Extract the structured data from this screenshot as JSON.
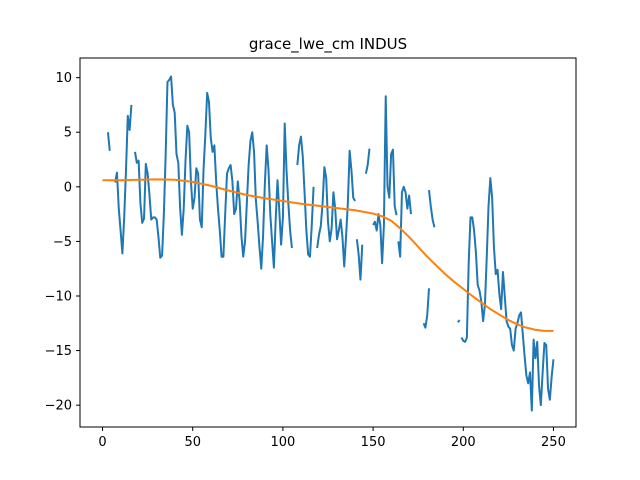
{
  "chart_data": {
    "type": "line",
    "title": "grace_lwe_cm INDUS",
    "xlabel": "",
    "ylabel": "",
    "xlim": [
      -12.5,
      262.5
    ],
    "ylim": [
      -22,
      11.8
    ],
    "x_ticks": [
      0,
      50,
      100,
      150,
      200,
      250
    ],
    "y_ticks": [
      -20,
      -15,
      -10,
      -5,
      0,
      5,
      10
    ],
    "grid": false,
    "legend": "none",
    "series": [
      {
        "color": "#1f77b4",
        "points": [
          [
            3,
            5.0
          ],
          [
            4,
            3.3
          ],
          null,
          [
            7,
            0.4
          ],
          [
            8,
            1.3
          ],
          [
            9,
            -2.0
          ],
          [
            10,
            -4.0
          ],
          [
            11,
            -6.1
          ],
          [
            12,
            -2.8
          ],
          [
            13,
            1.5
          ],
          [
            14,
            6.5
          ],
          [
            15,
            5.2
          ],
          [
            16,
            7.5
          ],
          null,
          [
            18,
            3.2
          ],
          [
            19,
            2.2
          ],
          [
            20,
            2.4
          ],
          [
            21,
            -1.5
          ],
          [
            22,
            -3.3
          ],
          [
            23,
            -2.9
          ],
          [
            24,
            2.1
          ],
          [
            25,
            1.2
          ],
          [
            26,
            -0.7
          ],
          [
            27,
            -3.0
          ],
          [
            28,
            -2.8
          ],
          [
            29,
            -2.8
          ],
          [
            30,
            -3.0
          ],
          [
            31,
            -4.6
          ],
          [
            32,
            -6.5
          ],
          [
            33,
            -6.3
          ],
          [
            34,
            -2.5
          ],
          [
            35,
            3.0
          ],
          [
            36,
            9.6
          ],
          [
            37,
            9.8
          ],
          [
            38,
            10.1
          ],
          [
            39,
            7.5
          ],
          [
            40,
            6.8
          ],
          [
            41,
            3.0
          ],
          [
            42,
            2.2
          ],
          [
            43,
            -1.9
          ],
          [
            44,
            -4.4
          ],
          [
            45,
            -2.0
          ],
          [
            46,
            2.4
          ],
          [
            47,
            5.6
          ],
          [
            48,
            5.0
          ],
          [
            49,
            0.5
          ],
          [
            50,
            -2.0
          ],
          [
            51,
            -1.0
          ],
          [
            52,
            1.7
          ],
          [
            53,
            1.2
          ],
          [
            54,
            -3.0
          ],
          [
            55,
            -3.7
          ],
          [
            56,
            1.6
          ],
          [
            57,
            4.8
          ],
          [
            58,
            8.6
          ],
          [
            59,
            7.8
          ],
          [
            60,
            4.5
          ],
          [
            61,
            3.2
          ],
          [
            62,
            3.8
          ],
          [
            63,
            0.5
          ],
          [
            64,
            -2.0
          ],
          [
            65,
            -4.0
          ],
          [
            66,
            -6.4
          ],
          [
            67,
            -6.4
          ],
          [
            68,
            -2.5
          ],
          [
            69,
            1.2
          ],
          [
            70,
            1.7
          ],
          [
            71,
            2.0
          ],
          [
            72,
            0.5
          ],
          [
            73,
            -2.5
          ],
          [
            74,
            -2.0
          ],
          [
            75,
            0.5
          ],
          [
            76,
            -1.3
          ],
          [
            77,
            -4.5
          ],
          [
            78,
            -6.4
          ],
          [
            79,
            -5.0
          ],
          [
            80,
            -1.5
          ],
          [
            81,
            2.0
          ],
          [
            82,
            4.2
          ],
          [
            83,
            5.0
          ],
          [
            84,
            3.2
          ],
          [
            85,
            -1.2
          ],
          [
            86,
            -3.2
          ],
          [
            87,
            -5.5
          ],
          [
            88,
            -7.5
          ],
          [
            89,
            -4.5
          ],
          [
            90,
            0.3
          ],
          [
            91,
            3.8
          ],
          [
            92,
            1.6
          ],
          [
            93,
            -2.5
          ],
          [
            94,
            -5.0
          ],
          [
            95,
            -7.4
          ],
          [
            96,
            -3.0
          ],
          [
            97,
            0.6
          ],
          [
            98,
            -2.2
          ],
          [
            99,
            -5.3
          ],
          [
            100,
            -2.8
          ],
          [
            101,
            5.8
          ],
          [
            102,
            1.5
          ],
          [
            103,
            -1.5
          ],
          [
            104,
            -4.0
          ],
          [
            105,
            -5.6
          ],
          null,
          [
            108,
            2.0
          ],
          [
            109,
            3.8
          ],
          [
            110,
            4.6
          ],
          [
            111,
            2.8
          ],
          [
            112,
            -0.5
          ],
          [
            113,
            -4.0
          ],
          [
            114,
            -6.2
          ],
          [
            115,
            -6.4
          ],
          [
            116,
            -3.5
          ],
          [
            117,
            0.0
          ],
          null,
          [
            119,
            -5.6
          ],
          [
            120,
            -4.4
          ],
          [
            121,
            -3.6
          ],
          [
            122,
            -1.5
          ],
          [
            123,
            1.8
          ],
          [
            124,
            0.8
          ],
          [
            125,
            -3.2
          ],
          [
            126,
            -5.0
          ],
          [
            127,
            -3.8
          ],
          [
            128,
            -0.5
          ],
          [
            129,
            -2.0
          ],
          [
            130,
            -4.8
          ],
          [
            131,
            -4.0
          ],
          [
            132,
            -3.0
          ],
          [
            133,
            -4.6
          ],
          [
            134,
            -7.3
          ],
          [
            135,
            -4.6
          ],
          [
            136,
            -1.5
          ],
          [
            137,
            3.3
          ],
          [
            138,
            1.5
          ],
          [
            139,
            -1.0
          ],
          [
            140,
            -1.3
          ],
          null,
          [
            141,
            -4.8
          ],
          [
            142,
            -6.2
          ],
          [
            143,
            -8.5
          ],
          [
            144,
            -5.3
          ],
          null,
          [
            146,
            1.2
          ],
          [
            147,
            2.0
          ],
          [
            148,
            3.5
          ],
          null,
          [
            150,
            -3.5
          ],
          [
            151,
            -3.2
          ],
          [
            152,
            -4.0
          ],
          [
            153,
            -2.5
          ],
          [
            154,
            -3.5
          ],
          [
            155,
            -7.0
          ],
          [
            156,
            -3.5
          ],
          [
            157,
            8.3
          ],
          [
            158,
            0.0
          ],
          [
            159,
            -1.0
          ],
          [
            160,
            3.0
          ],
          [
            161,
            3.4
          ],
          [
            162,
            -1.8
          ],
          [
            163,
            -2.6
          ],
          null,
          [
            164,
            -5.0
          ],
          [
            165,
            -6.4
          ],
          [
            166,
            -0.5
          ],
          [
            167,
            0.0
          ],
          [
            168,
            -0.5
          ],
          [
            169,
            -2.0
          ],
          [
            170,
            -0.8
          ],
          [
            171,
            -2.5
          ],
          null,
          [
            178,
            -12.5
          ],
          [
            179,
            -12.9
          ],
          [
            180,
            -11.8
          ],
          [
            181,
            -9.3
          ],
          null,
          [
            181,
            -0.3
          ],
          [
            182,
            -1.8
          ],
          [
            183,
            -3.0
          ],
          [
            184,
            -3.7
          ],
          null,
          [
            197,
            -12.4
          ],
          [
            198,
            -12.2
          ],
          null,
          [
            199,
            -13.8
          ],
          [
            200,
            -14.1
          ],
          [
            201,
            -14.2
          ],
          [
            202,
            -13.8
          ],
          [
            203,
            -7.0
          ],
          [
            204,
            -2.8
          ],
          [
            205,
            -2.8
          ],
          [
            206,
            -4.0
          ],
          [
            207,
            -6.0
          ],
          [
            208,
            -9.0
          ],
          [
            209,
            -9.5
          ],
          [
            210,
            -10.5
          ],
          [
            211,
            -12.3
          ],
          [
            212,
            -10.8
          ],
          [
            213,
            -6.5
          ],
          [
            214,
            -1.8
          ],
          [
            215,
            0.8
          ],
          [
            216,
            -1.0
          ],
          [
            217,
            -5.5
          ],
          [
            218,
            -8.0
          ],
          [
            219,
            -7.6
          ],
          [
            220,
            -9.8
          ],
          [
            221,
            -11.2
          ],
          [
            222,
            -7.8
          ],
          [
            223,
            -10.0
          ],
          [
            224,
            -12.3
          ],
          [
            225,
            -12.8
          ],
          [
            226,
            -13.0
          ],
          [
            227,
            -14.5
          ],
          [
            228,
            -15.0
          ],
          [
            229,
            -13.0
          ],
          [
            230,
            -12.5
          ],
          [
            231,
            -11.8
          ],
          [
            232,
            -11.5
          ],
          [
            233,
            -13.5
          ],
          [
            234,
            -15.5
          ],
          [
            235,
            -17.3
          ],
          [
            236,
            -18.0
          ],
          [
            237,
            -17.0
          ],
          [
            238,
            -20.5
          ],
          [
            239,
            -14.0
          ],
          [
            240,
            -15.7
          ],
          [
            241,
            -14.2
          ],
          [
            242,
            -18.2
          ],
          [
            243,
            -20.0
          ],
          [
            244,
            -17.0
          ],
          [
            245,
            -14.3
          ],
          [
            246,
            -14.5
          ],
          [
            247,
            -18.5
          ],
          [
            248,
            -19.5
          ],
          [
            249,
            -17.4
          ],
          [
            250,
            -15.8
          ]
        ]
      },
      {
        "color": "#ff7f0e",
        "points": [
          [
            0,
            0.6
          ],
          [
            10,
            0.6
          ],
          [
            20,
            0.65
          ],
          [
            30,
            0.68
          ],
          [
            40,
            0.65
          ],
          [
            50,
            0.45
          ],
          [
            60,
            0.1
          ],
          [
            70,
            -0.35
          ],
          [
            80,
            -0.75
          ],
          [
            90,
            -1.05
          ],
          [
            100,
            -1.3
          ],
          [
            110,
            -1.55
          ],
          [
            120,
            -1.75
          ],
          [
            130,
            -1.95
          ],
          [
            140,
            -2.15
          ],
          [
            150,
            -2.45
          ],
          [
            155,
            -2.7
          ],
          [
            160,
            -3.1
          ],
          [
            165,
            -3.8
          ],
          [
            170,
            -4.6
          ],
          [
            175,
            -5.5
          ],
          [
            180,
            -6.4
          ],
          [
            185,
            -7.2
          ],
          [
            190,
            -8.0
          ],
          [
            195,
            -8.7
          ],
          [
            200,
            -9.35
          ],
          [
            205,
            -10.0
          ],
          [
            210,
            -10.6
          ],
          [
            215,
            -11.2
          ],
          [
            220,
            -11.7
          ],
          [
            225,
            -12.2
          ],
          [
            230,
            -12.6
          ],
          [
            235,
            -12.9
          ],
          [
            240,
            -13.1
          ],
          [
            245,
            -13.2
          ],
          [
            250,
            -13.2
          ]
        ]
      }
    ]
  }
}
